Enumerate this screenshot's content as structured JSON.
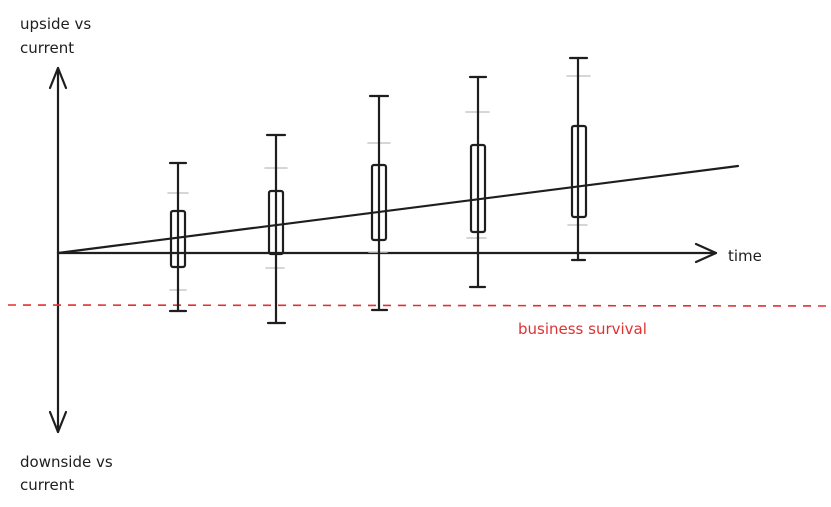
{
  "labels": {
    "y_axis_top": [
      "upside vs",
      "current"
    ],
    "y_axis_bottom": [
      "downside vs",
      "current"
    ],
    "x_axis": "time",
    "threshold": "business survival"
  },
  "colors": {
    "ink": "#1e1e1e",
    "threshold": "#e03131",
    "ghost": "#c8c8c8"
  },
  "icons": {
    "axis_arrow": "arrowhead-icon"
  }
}
